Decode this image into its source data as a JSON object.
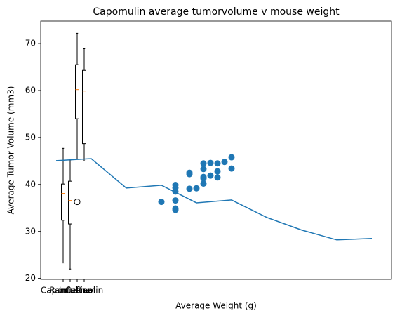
{
  "chart_data": {
    "type": "box",
    "title": "Capomulin average tumorvolume v mouse weight",
    "xlabel": "Average Weight (g)",
    "ylabel": "Average Tumor Volume (mm3)",
    "xlim": [
      -2.2,
      47.8
    ],
    "ylim": [
      19.8,
      74.8
    ],
    "xticks": [
      {
        "value": 1,
        "label": "Capomulin"
      },
      {
        "value": 2,
        "label": "Ramicane"
      },
      {
        "value": 3,
        "label": "Infubinol"
      },
      {
        "value": 4,
        "label": "Ceftamin"
      }
    ],
    "yticks": [
      20,
      30,
      40,
      50,
      60,
      70
    ],
    "box_color": "#000000",
    "median_color": "#ff7f0e",
    "boxes": [
      {
        "x": 1,
        "whislo": 23.3,
        "q1": 32.4,
        "med": 38.1,
        "q3": 40.1,
        "whishi": 47.7,
        "fliers": []
      },
      {
        "x": 2,
        "whislo": 22.0,
        "q1": 31.6,
        "med": 36.6,
        "q3": 40.7,
        "whishi": 45.2,
        "fliers": []
      },
      {
        "x": 3,
        "whislo": 45.4,
        "q1": 54.0,
        "med": 60.2,
        "q3": 65.5,
        "whishi": 72.2,
        "fliers": [
          36.3
        ]
      },
      {
        "x": 4,
        "whislo": 45.0,
        "q1": 48.7,
        "med": 59.9,
        "q3": 64.3,
        "whishi": 68.9,
        "fliers": []
      }
    ],
    "layers": [
      {
        "type": "line",
        "color": "#1f77b4",
        "x": [
          0,
          5,
          10,
          15,
          20,
          25,
          30,
          35,
          40,
          45
        ],
        "values": [
          45.07,
          45.5,
          39.25,
          39.85,
          36.1,
          36.7,
          33.0,
          30.3,
          28.2,
          28.5
        ]
      },
      {
        "type": "scatter",
        "color": "#1f77b4",
        "x": [
          15,
          17,
          17,
          17,
          17,
          17,
          17,
          19,
          19,
          19,
          20,
          21,
          21,
          21,
          21,
          21,
          22,
          22,
          23,
          23,
          23,
          24,
          25,
          25
        ],
        "values": [
          36.3,
          39.9,
          39.3,
          38.5,
          36.6,
          34.9,
          34.6,
          42.5,
          42.2,
          39.1,
          39.2,
          44.5,
          43.3,
          41.6,
          41.3,
          40.2,
          44.6,
          41.9,
          44.5,
          42.8,
          41.5,
          44.8,
          45.8,
          43.4
        ]
      }
    ]
  }
}
